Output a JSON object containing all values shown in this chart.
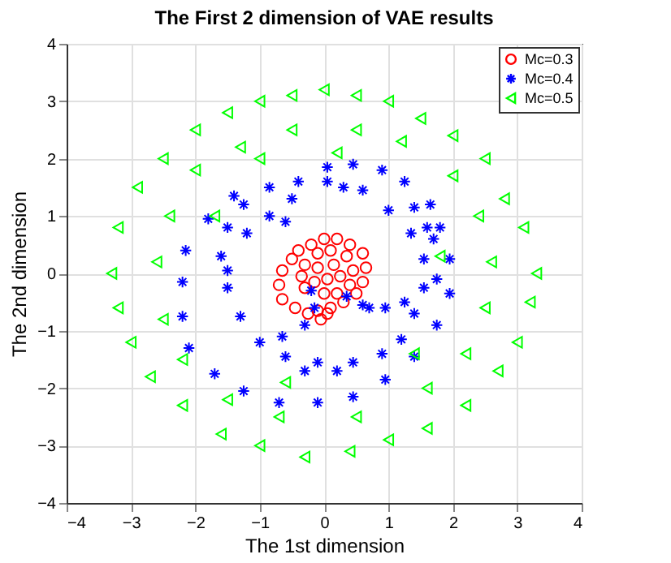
{
  "chart_data": {
    "type": "scatter",
    "title": "The First 2 dimension of VAE results",
    "xlabel": "The 1st dimension",
    "ylabel": "The 2nd dimension",
    "xlim": [
      -4,
      4
    ],
    "ylim": [
      -4,
      4
    ],
    "xticks": [
      -4,
      -3,
      -2,
      -1,
      0,
      1,
      2,
      3,
      4
    ],
    "yticks": [
      -4,
      -3,
      -2,
      -1,
      0,
      1,
      2,
      3,
      4
    ],
    "grid": true,
    "legend": "top right",
    "series": [
      {
        "name": "Mc=0.3",
        "color": "#ff0000",
        "marker": "circle",
        "x": [
          0.0,
          0.2,
          0.4,
          0.6,
          0.65,
          0.6,
          0.5,
          0.3,
          0.1,
          -0.1,
          -0.25,
          -0.45,
          -0.65,
          -0.7,
          -0.65,
          -0.5,
          -0.4,
          -0.2,
          -0.3,
          -0.35,
          -0.3,
          -0.1,
          0.1,
          0.35,
          0.45,
          0.4,
          0.2,
          0.0,
          -0.15,
          -0.1,
          0.15,
          0.25,
          0.05,
          -0.05,
          0.05
        ],
        "values": [
          0.6,
          0.6,
          0.5,
          0.35,
          0.1,
          -0.15,
          -0.35,
          -0.5,
          -0.6,
          -0.65,
          -0.7,
          -0.6,
          -0.45,
          -0.2,
          0.05,
          0.25,
          0.4,
          0.5,
          0.15,
          -0.05,
          -0.25,
          0.35,
          0.4,
          0.3,
          0.05,
          -0.2,
          -0.35,
          -0.35,
          -0.15,
          0.1,
          0.15,
          -0.05,
          -0.1,
          -0.8,
          -0.7
        ]
      },
      {
        "name": "Mc=0.4",
        "color": "#0000ff",
        "marker": "cross",
        "x": [
          -0.4,
          0.05,
          0.6,
          -0.85,
          -1.25,
          1.0,
          -1.5,
          1.35,
          -1.6,
          1.55,
          -1.5,
          1.55,
          -1.3,
          1.4,
          1.2,
          -1.0,
          0.9,
          -0.6,
          0.45,
          -0.1,
          -0.2,
          0.05,
          0.45,
          0.9,
          1.25,
          1.4,
          1.65,
          1.6,
          1.8,
          1.7,
          1.95,
          1.75,
          1.95,
          1.75,
          1.4,
          0.95,
          0.45,
          -0.1,
          -0.7,
          -1.25,
          -1.7,
          -2.1,
          -2.2,
          -2.2,
          -2.15,
          -1.8,
          -1.4,
          -1.2,
          -0.85,
          -0.6,
          -0.5,
          0.3,
          -0.3,
          0.2,
          0.7,
          0.95,
          -0.65,
          -0.3,
          -0.15,
          0.35,
          0.6,
          1.25,
          -1.5
        ],
        "values": [
          1.6,
          1.6,
          1.45,
          1.5,
          1.2,
          1.1,
          0.8,
          0.7,
          0.3,
          0.25,
          -0.25,
          -0.25,
          -0.75,
          -0.7,
          -1.15,
          -1.2,
          -1.4,
          -1.45,
          -1.55,
          -1.55,
          -0.3,
          1.85,
          1.9,
          1.8,
          1.6,
          1.15,
          1.2,
          0.8,
          0.8,
          0.6,
          0.25,
          -0.1,
          -0.35,
          -0.9,
          -1.45,
          -1.85,
          -2.15,
          -2.25,
          -2.25,
          -2.05,
          -1.75,
          -1.3,
          -0.75,
          -0.15,
          0.4,
          0.95,
          1.35,
          0.7,
          1.0,
          0.9,
          1.3,
          1.5,
          -1.7,
          -1.7,
          -0.6,
          -0.6,
          -1.1,
          -0.9,
          -0.6,
          -0.4,
          -0.55,
          -0.5,
          0.05
        ]
      },
      {
        "name": "Mc=0.5",
        "color": "#00ff00",
        "marker": "triangle",
        "x": [
          -0.5,
          0.0,
          0.5,
          1.0,
          -1.0,
          -1.5,
          1.5,
          -2.0,
          2.0,
          -2.5,
          2.5,
          -2.9,
          2.8,
          -3.2,
          3.1,
          -3.3,
          3.3,
          -3.2,
          3.2,
          -3.0,
          3.0,
          -2.7,
          2.7,
          -2.2,
          2.2,
          -1.6,
          1.6,
          -1.0,
          1.0,
          -0.3,
          0.4,
          -0.5,
          0.5,
          1.2,
          -1.3,
          -2.0,
          2.0,
          -2.4,
          2.4,
          -2.6,
          2.6,
          -2.5,
          2.5,
          -2.2,
          2.2,
          -1.5,
          1.6,
          -0.7,
          0.5,
          -0.6,
          1.4,
          -1.7,
          1.8,
          -1.0,
          0.2
        ],
        "values": [
          3.1,
          3.2,
          3.1,
          3.0,
          3.0,
          2.8,
          2.7,
          2.5,
          2.4,
          2.0,
          2.0,
          1.5,
          1.3,
          0.8,
          0.8,
          0.0,
          0.0,
          -0.6,
          -0.5,
          -1.2,
          -1.2,
          -1.8,
          -1.7,
          -2.3,
          -2.3,
          -2.8,
          -2.7,
          -3.0,
          -2.9,
          -3.2,
          -3.1,
          2.5,
          2.5,
          2.3,
          2.2,
          1.8,
          1.7,
          1.0,
          1.0,
          0.2,
          0.2,
          -0.8,
          -0.6,
          -1.5,
          -1.4,
          -2.2,
          -2.0,
          -2.5,
          -2.5,
          -1.9,
          -1.4,
          1.0,
          0.3,
          2.0,
          2.1
        ]
      }
    ]
  }
}
